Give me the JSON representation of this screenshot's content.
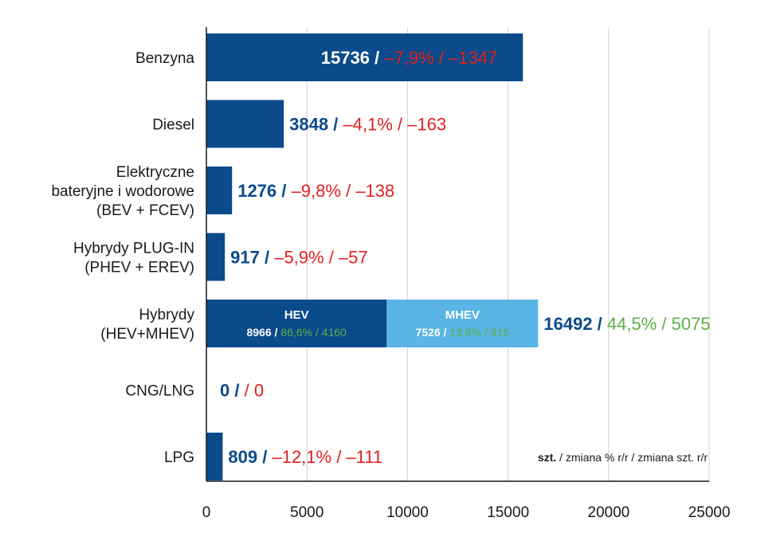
{
  "chart_data": {
    "type": "bar",
    "orientation": "horizontal",
    "xlim": [
      0,
      25000
    ],
    "x_ticks": [
      "0",
      "5000",
      "10000",
      "15000",
      "20000",
      "25000"
    ],
    "grid": true,
    "note": {
      "unit": "szt.",
      "rest": " / zmiana % r/r / zmiana szt. r/r"
    },
    "colors": {
      "bar": "#0b4a8b",
      "mhev": "#5ab4e5",
      "negative": "#e02020",
      "positive": "#5db045",
      "axis": "#1a1a1a",
      "grid": "#d0d0d0"
    },
    "categories": [
      {
        "label_lines": [
          "Benzyna"
        ],
        "value": 15736,
        "value_text": "15736",
        "pct": "–7,9%",
        "diff": "–1347",
        "trend": "negative",
        "label_inside": true
      },
      {
        "label_lines": [
          "Diesel"
        ],
        "value": 3848,
        "value_text": "3848",
        "pct": "–4,1%",
        "diff": "–163",
        "trend": "negative"
      },
      {
        "label_lines": [
          "Elektryczne",
          "bateryjne i wodorowe",
          "(BEV + FCEV)"
        ],
        "value": 1276,
        "value_text": "1276",
        "pct": "–9,8%",
        "diff": "–138",
        "trend": "negative"
      },
      {
        "label_lines": [
          "Hybrydy PLUG-IN",
          "(PHEV + EREV)"
        ],
        "value": 917,
        "value_text": "917",
        "pct": "–5,9%",
        "diff": "–57",
        "trend": "negative"
      },
      {
        "label_lines": [
          "Hybrydy",
          "(HEV+MHEV)"
        ],
        "value": 16492,
        "value_text": "16492",
        "pct": "44,5%",
        "diff": "5075",
        "trend": "positive",
        "segments": [
          {
            "name": "HEV",
            "value": 8966,
            "value_text": "8966",
            "pct": "86,6%",
            "diff": "4160",
            "color_key": "bar"
          },
          {
            "name": "MHEV",
            "value": 7526,
            "value_text": "7526",
            "pct": "13,8%",
            "diff": "915",
            "color_key": "mhev"
          }
        ]
      },
      {
        "label_lines": [
          "CNG/LNG"
        ],
        "value": 0,
        "value_text": "0",
        "pct": "",
        "diff": "0",
        "trend": "negative"
      },
      {
        "label_lines": [
          "LPG"
        ],
        "value": 809,
        "value_text": "809",
        "pct": "–12,1%",
        "diff": "–111",
        "trend": "negative"
      }
    ]
  }
}
